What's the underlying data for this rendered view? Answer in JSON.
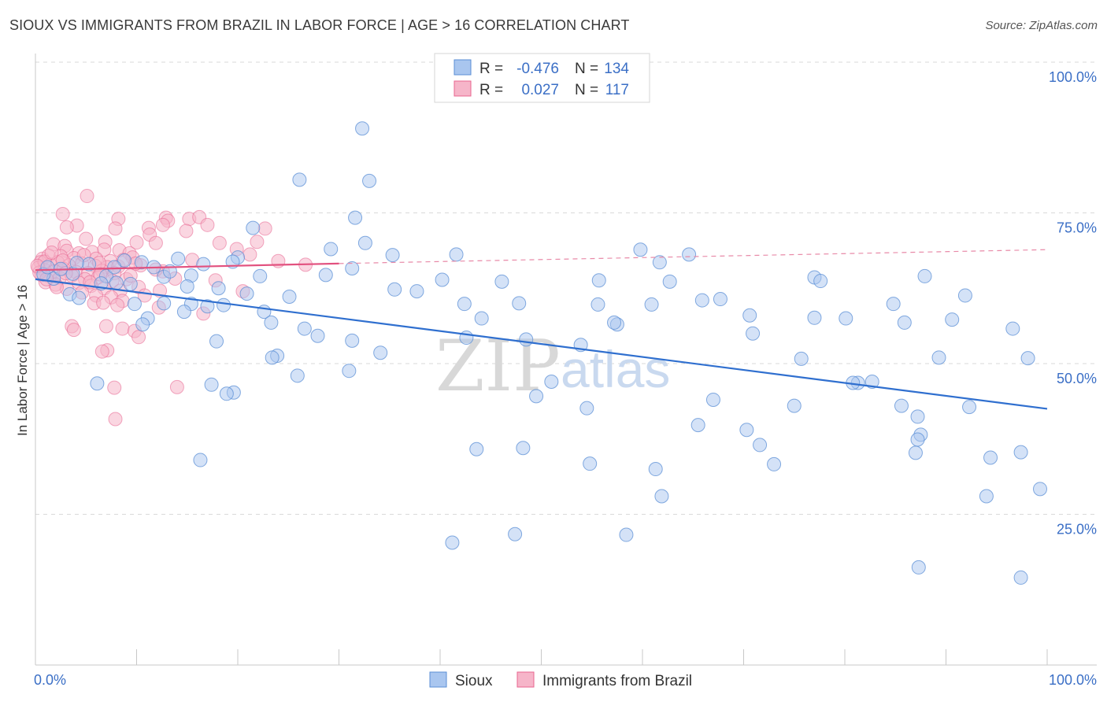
{
  "title": "SIOUX VS IMMIGRANTS FROM BRAZIL IN LABOR FORCE | AGE > 16 CORRELATION CHART",
  "source": "Source: ZipAtlas.com",
  "watermark": {
    "zip": "ZIP",
    "atlas": "atlas"
  },
  "colors": {
    "sioux": "#5b8fd6",
    "sioux_fill": "#a9c6ef",
    "brazil": "#e8658f",
    "brazil_fill": "#f6b5c9",
    "axis_text": "#3b6fc6",
    "grid": "#d9d9d9"
  },
  "legend": {
    "rows": [
      {
        "r_label": "R =",
        "r_value": "-0.476",
        "n_label": "N =",
        "n_value": "134"
      },
      {
        "r_label": "R =",
        "r_value": "0.027",
        "n_label": "N =",
        "n_value": "117"
      }
    ]
  },
  "bottom_legend": {
    "sioux": "Sioux",
    "brazil": "Immigrants from Brazil"
  },
  "chart_data": {
    "type": "scatter",
    "xlabel": "",
    "ylabel": "In Labor Force | Age > 16",
    "xlim": [
      0,
      100
    ],
    "ylim": [
      0,
      100
    ],
    "x_tick_labels": [
      "0.0%",
      "100.0%"
    ],
    "y_tick_labels": [
      {
        "value": 100,
        "label": "100.0%"
      },
      {
        "value": 75,
        "label": "75.0%"
      },
      {
        "value": 50,
        "label": "50.0%"
      },
      {
        "value": 25,
        "label": "25.0%"
      }
    ],
    "grid": true,
    "legend_position": "top-center",
    "series": [
      {
        "name": "Sioux",
        "trend": {
          "x0": 0,
          "y0": 64.0,
          "x1": 100,
          "y1": 42.5
        },
        "points": [
          [
            32.3,
            89.0
          ],
          [
            26.1,
            80.5
          ],
          [
            33.0,
            80.3
          ],
          [
            31.6,
            74.2
          ],
          [
            21.5,
            72.5
          ],
          [
            32.6,
            70.0
          ],
          [
            29.2,
            69.0
          ],
          [
            35.3,
            68.0
          ],
          [
            41.6,
            68.1
          ],
          [
            59.8,
            68.9
          ],
          [
            64.6,
            68.1
          ],
          [
            20.0,
            67.6
          ],
          [
            14.1,
            67.4
          ],
          [
            8.8,
            67.1
          ],
          [
            10.5,
            66.8
          ],
          [
            16.6,
            66.5
          ],
          [
            19.5,
            66.9
          ],
          [
            11.7,
            66.0
          ],
          [
            31.3,
            65.8
          ],
          [
            61.7,
            66.8
          ],
          [
            5.3,
            66.5
          ],
          [
            3.7,
            64.9
          ],
          [
            7.0,
            64.5
          ],
          [
            12.7,
            64.4
          ],
          [
            15.4,
            64.6
          ],
          [
            22.2,
            64.5
          ],
          [
            40.2,
            63.9
          ],
          [
            46.1,
            63.6
          ],
          [
            55.7,
            63.8
          ],
          [
            62.7,
            63.6
          ],
          [
            77.0,
            64.3
          ],
          [
            77.6,
            63.7
          ],
          [
            87.9,
            64.5
          ],
          [
            1.8,
            64.1
          ],
          [
            6.5,
            63.3
          ],
          [
            8.0,
            63.4
          ],
          [
            9.4,
            63.2
          ],
          [
            15.0,
            62.8
          ],
          [
            18.1,
            62.5
          ],
          [
            35.5,
            62.3
          ],
          [
            37.7,
            62.0
          ],
          [
            3.4,
            61.5
          ],
          [
            4.3,
            60.9
          ],
          [
            25.1,
            61.1
          ],
          [
            65.9,
            60.5
          ],
          [
            67.7,
            60.7
          ],
          [
            91.9,
            61.3
          ],
          [
            12.7,
            60.0
          ],
          [
            15.4,
            59.9
          ],
          [
            17.0,
            59.5
          ],
          [
            18.6,
            59.7
          ],
          [
            9.8,
            59.9
          ],
          [
            42.4,
            59.9
          ],
          [
            47.8,
            60.0
          ],
          [
            55.6,
            59.8
          ],
          [
            60.9,
            59.8
          ],
          [
            70.6,
            58.0
          ],
          [
            77.0,
            57.6
          ],
          [
            80.1,
            57.5
          ],
          [
            84.8,
            59.9
          ],
          [
            90.6,
            57.3
          ],
          [
            14.7,
            58.6
          ],
          [
            22.6,
            58.6
          ],
          [
            11.1,
            57.5
          ],
          [
            10.6,
            56.5
          ],
          [
            23.3,
            56.8
          ],
          [
            44.1,
            57.5
          ],
          [
            57.5,
            56.5
          ],
          [
            57.2,
            56.8
          ],
          [
            85.9,
            56.8
          ],
          [
            96.6,
            55.8
          ],
          [
            26.6,
            55.8
          ],
          [
            27.9,
            54.6
          ],
          [
            42.6,
            54.3
          ],
          [
            48.5,
            54.0
          ],
          [
            70.9,
            55.0
          ],
          [
            31.3,
            53.8
          ],
          [
            17.9,
            53.7
          ],
          [
            53.9,
            53.1
          ],
          [
            23.9,
            51.3
          ],
          [
            23.4,
            51.0
          ],
          [
            34.1,
            51.8
          ],
          [
            75.7,
            50.8
          ],
          [
            89.3,
            51.0
          ],
          [
            98.1,
            50.9
          ],
          [
            31.0,
            48.8
          ],
          [
            25.9,
            48.0
          ],
          [
            82.7,
            47.0
          ],
          [
            81.3,
            46.8
          ],
          [
            80.8,
            46.8
          ],
          [
            6.1,
            46.7
          ],
          [
            17.4,
            46.5
          ],
          [
            19.6,
            45.2
          ],
          [
            18.9,
            45.0
          ],
          [
            51.0,
            47.0
          ],
          [
            49.5,
            44.6
          ],
          [
            67.0,
            44.0
          ],
          [
            75.0,
            43.0
          ],
          [
            85.6,
            43.0
          ],
          [
            54.5,
            42.6
          ],
          [
            92.3,
            42.8
          ],
          [
            87.2,
            41.2
          ],
          [
            65.5,
            39.8
          ],
          [
            70.3,
            39.0
          ],
          [
            87.5,
            38.2
          ],
          [
            87.2,
            37.4
          ],
          [
            71.6,
            36.5
          ],
          [
            43.6,
            35.8
          ],
          [
            48.2,
            36.0
          ],
          [
            87.0,
            35.2
          ],
          [
            94.4,
            34.4
          ],
          [
            97.4,
            35.3
          ],
          [
            16.3,
            34.0
          ],
          [
            54.8,
            33.4
          ],
          [
            73.0,
            33.3
          ],
          [
            61.3,
            32.5
          ],
          [
            61.9,
            28.0
          ],
          [
            94.0,
            28.0
          ],
          [
            99.3,
            29.2
          ],
          [
            41.2,
            20.3
          ],
          [
            47.4,
            21.7
          ],
          [
            58.4,
            21.6
          ],
          [
            87.3,
            16.2
          ],
          [
            97.4,
            14.5
          ],
          [
            0.8,
            64.8
          ],
          [
            1.2,
            66.0
          ],
          [
            2.5,
            65.7
          ],
          [
            28.7,
            64.7
          ],
          [
            4.1,
            66.7
          ],
          [
            7.8,
            66.0
          ],
          [
            13.3,
            65.3
          ],
          [
            20.9,
            61.6
          ]
        ]
      },
      {
        "name": "Immigrants from Brazil",
        "trend": {
          "x0": 0,
          "y0": 65.5,
          "x1": 30,
          "y1": 66.6,
          "dash_to_x": 100,
          "dash_to_y": 68.9
        },
        "points": [
          [
            5.1,
            77.8
          ],
          [
            2.7,
            74.8
          ],
          [
            8.2,
            74.0
          ],
          [
            12.9,
            74.2
          ],
          [
            13.1,
            73.7
          ],
          [
            15.2,
            74.0
          ],
          [
            16.2,
            74.3
          ],
          [
            4.1,
            72.9
          ],
          [
            3.1,
            72.6
          ],
          [
            7.9,
            72.4
          ],
          [
            11.2,
            72.5
          ],
          [
            12.6,
            73.0
          ],
          [
            17.0,
            73.0
          ],
          [
            22.7,
            72.4
          ],
          [
            14.9,
            72.0
          ],
          [
            11.3,
            71.4
          ],
          [
            5.0,
            70.7
          ],
          [
            6.9,
            70.2
          ],
          [
            10.0,
            70.1
          ],
          [
            11.9,
            70.0
          ],
          [
            18.2,
            70.0
          ],
          [
            21.9,
            70.2
          ],
          [
            1.8,
            69.8
          ],
          [
            2.9,
            69.5
          ],
          [
            3.1,
            68.7
          ],
          [
            4.3,
            68.3
          ],
          [
            5.6,
            68.5
          ],
          [
            6.8,
            68.9
          ],
          [
            8.3,
            68.8
          ],
          [
            9.3,
            68.3
          ],
          [
            0.7,
            67.4
          ],
          [
            1.3,
            67.9
          ],
          [
            2.5,
            67.8
          ],
          [
            3.8,
            67.5
          ],
          [
            6.0,
            67.4
          ],
          [
            7.4,
            67.0
          ],
          [
            9.6,
            67.6
          ],
          [
            0.5,
            66.8
          ],
          [
            1.5,
            66.4
          ],
          [
            2.2,
            66.8
          ],
          [
            3.3,
            66.3
          ],
          [
            4.6,
            66.6
          ],
          [
            5.9,
            66.2
          ],
          [
            7.1,
            66.0
          ],
          [
            8.2,
            66.1
          ],
          [
            10.4,
            66.3
          ],
          [
            0.3,
            65.9
          ],
          [
            0.9,
            65.5
          ],
          [
            1.9,
            65.3
          ],
          [
            2.8,
            65.7
          ],
          [
            4.0,
            65.2
          ],
          [
            5.2,
            65.0
          ],
          [
            6.6,
            65.4
          ],
          [
            7.8,
            65.0
          ],
          [
            0.6,
            64.7
          ],
          [
            1.4,
            64.4
          ],
          [
            2.4,
            64.2
          ],
          [
            3.6,
            64.6
          ],
          [
            4.9,
            64.0
          ],
          [
            6.2,
            64.3
          ],
          [
            7.6,
            63.7
          ],
          [
            9.0,
            64.0
          ],
          [
            12.6,
            65.3
          ],
          [
            1.0,
            63.5
          ],
          [
            2.0,
            63.1
          ],
          [
            4.3,
            63.4
          ],
          [
            5.5,
            62.9
          ],
          [
            6.8,
            62.5
          ],
          [
            8.4,
            62.1
          ],
          [
            10.2,
            62.7
          ],
          [
            3.1,
            62.4
          ],
          [
            4.6,
            61.8
          ],
          [
            6.0,
            61.3
          ],
          [
            7.5,
            61.0
          ],
          [
            8.6,
            60.4
          ],
          [
            10.8,
            61.3
          ],
          [
            5.8,
            60.0
          ],
          [
            6.7,
            60.1
          ],
          [
            8.1,
            59.7
          ],
          [
            12.2,
            59.3
          ],
          [
            16.6,
            58.3
          ],
          [
            3.6,
            56.2
          ],
          [
            7.0,
            56.2
          ],
          [
            8.6,
            55.8
          ],
          [
            9.8,
            55.4
          ],
          [
            3.8,
            55.6
          ],
          [
            10.2,
            54.4
          ],
          [
            7.1,
            52.2
          ],
          [
            6.6,
            52.0
          ],
          [
            7.8,
            46.0
          ],
          [
            14.0,
            46.1
          ],
          [
            7.9,
            40.8
          ],
          [
            0.9,
            66.9
          ],
          [
            2.7,
            67.1
          ],
          [
            4.8,
            68.0
          ],
          [
            6.3,
            66.7
          ],
          [
            8.7,
            67.2
          ],
          [
            9.9,
            66.6
          ],
          [
            11.9,
            65.6
          ],
          [
            12.3,
            62.1
          ],
          [
            1.6,
            68.4
          ],
          [
            0.4,
            65.1
          ],
          [
            1.1,
            64.0
          ],
          [
            3.0,
            65.0
          ],
          [
            5.4,
            63.5
          ],
          [
            6.4,
            64.8
          ],
          [
            20.5,
            62.0
          ],
          [
            19.9,
            69.0
          ],
          [
            24.0,
            67.0
          ],
          [
            26.7,
            66.4
          ],
          [
            21.2,
            68.1
          ],
          [
            15.5,
            67.2
          ],
          [
            13.8,
            64.1
          ],
          [
            9.4,
            64.6
          ],
          [
            2.1,
            62.7
          ],
          [
            0.2,
            66.2
          ],
          [
            17.8,
            63.8
          ]
        ]
      }
    ]
  }
}
